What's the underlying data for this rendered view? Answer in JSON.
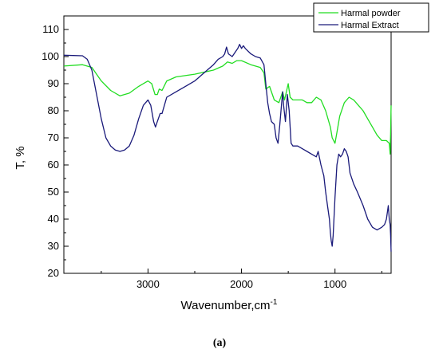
{
  "chart_data": {
    "type": "line",
    "xlabel": "Wavenumber,cm",
    "xlabel_superscript": "-1",
    "ylabel": "T, %",
    "caption": "(a)",
    "xlim": [
      3900,
      400
    ],
    "ylim": [
      20,
      115
    ],
    "x_ticks": [
      3000,
      2000,
      1000
    ],
    "y_ticks": [
      20,
      30,
      40,
      50,
      60,
      70,
      80,
      90,
      100,
      110
    ],
    "x_tick_labels": [
      "3000",
      "2000",
      "1000"
    ],
    "y_tick_labels": [
      "20",
      "30",
      "40",
      "50",
      "60",
      "70",
      "80",
      "90",
      "100",
      "110"
    ],
    "legend_position": "top-right",
    "series": [
      {
        "name": "Harmal powder",
        "color": "#22dd22",
        "points": [
          [
            3900,
            96.5
          ],
          [
            3700,
            97
          ],
          [
            3600,
            96
          ],
          [
            3500,
            91
          ],
          [
            3400,
            87.5
          ],
          [
            3300,
            85.5
          ],
          [
            3200,
            86.5
          ],
          [
            3100,
            89
          ],
          [
            3000,
            91
          ],
          [
            2960,
            90
          ],
          [
            2925,
            86
          ],
          [
            2900,
            86
          ],
          [
            2880,
            88
          ],
          [
            2850,
            87.5
          ],
          [
            2800,
            91
          ],
          [
            2700,
            92.5
          ],
          [
            2500,
            93.5
          ],
          [
            2300,
            95
          ],
          [
            2200,
            96.5
          ],
          [
            2150,
            98
          ],
          [
            2100,
            97.5
          ],
          [
            2050,
            98.5
          ],
          [
            2000,
            98.5
          ],
          [
            1900,
            97
          ],
          [
            1800,
            96
          ],
          [
            1760,
            94
          ],
          [
            1740,
            88
          ],
          [
            1700,
            89
          ],
          [
            1650,
            84
          ],
          [
            1600,
            83
          ],
          [
            1560,
            87
          ],
          [
            1540,
            84
          ],
          [
            1500,
            90
          ],
          [
            1480,
            85
          ],
          [
            1450,
            84
          ],
          [
            1400,
            84
          ],
          [
            1350,
            84
          ],
          [
            1300,
            83
          ],
          [
            1250,
            83
          ],
          [
            1200,
            85
          ],
          [
            1150,
            84
          ],
          [
            1100,
            80
          ],
          [
            1050,
            74
          ],
          [
            1030,
            70
          ],
          [
            1000,
            68
          ],
          [
            980,
            72
          ],
          [
            950,
            78
          ],
          [
            900,
            83
          ],
          [
            850,
            85
          ],
          [
            800,
            84
          ],
          [
            750,
            82
          ],
          [
            700,
            80
          ],
          [
            650,
            77
          ],
          [
            600,
            74
          ],
          [
            550,
            71
          ],
          [
            500,
            69
          ],
          [
            450,
            69
          ],
          [
            420,
            68
          ],
          [
            410,
            64
          ],
          [
            405,
            72
          ],
          [
            400,
            82
          ]
        ]
      },
      {
        "name": "Harmal Extract",
        "color": "#1a1a7a",
        "points": [
          [
            3900,
            100.5
          ],
          [
            3700,
            100.3
          ],
          [
            3650,
            99
          ],
          [
            3600,
            95
          ],
          [
            3550,
            86
          ],
          [
            3500,
            77
          ],
          [
            3450,
            70
          ],
          [
            3400,
            67
          ],
          [
            3350,
            65.5
          ],
          [
            3300,
            65
          ],
          [
            3250,
            65.5
          ],
          [
            3200,
            67
          ],
          [
            3150,
            71
          ],
          [
            3100,
            77
          ],
          [
            3050,
            82
          ],
          [
            3000,
            84
          ],
          [
            2970,
            82
          ],
          [
            2940,
            76
          ],
          [
            2920,
            74
          ],
          [
            2900,
            76
          ],
          [
            2870,
            79
          ],
          [
            2850,
            79
          ],
          [
            2800,
            85
          ],
          [
            2700,
            87
          ],
          [
            2600,
            89
          ],
          [
            2500,
            91
          ],
          [
            2400,
            94
          ],
          [
            2300,
            97
          ],
          [
            2250,
            99
          ],
          [
            2200,
            100
          ],
          [
            2180,
            101
          ],
          [
            2160,
            103.5
          ],
          [
            2140,
            101
          ],
          [
            2100,
            100
          ],
          [
            2060,
            102
          ],
          [
            2040,
            103
          ],
          [
            2020,
            104.5
          ],
          [
            2000,
            103
          ],
          [
            1980,
            104
          ],
          [
            1960,
            103
          ],
          [
            1900,
            101
          ],
          [
            1850,
            100
          ],
          [
            1800,
            99.5
          ],
          [
            1760,
            97
          ],
          [
            1740,
            90
          ],
          [
            1720,
            83
          ],
          [
            1700,
            79
          ],
          [
            1680,
            76
          ],
          [
            1650,
            75
          ],
          [
            1630,
            70
          ],
          [
            1610,
            68
          ],
          [
            1590,
            75
          ],
          [
            1570,
            83
          ],
          [
            1560,
            87
          ],
          [
            1550,
            82
          ],
          [
            1530,
            76
          ],
          [
            1510,
            86
          ],
          [
            1490,
            80
          ],
          [
            1470,
            68
          ],
          [
            1450,
            67
          ],
          [
            1400,
            67
          ],
          [
            1350,
            66
          ],
          [
            1300,
            65
          ],
          [
            1250,
            64
          ],
          [
            1200,
            63
          ],
          [
            1180,
            65
          ],
          [
            1150,
            60
          ],
          [
            1120,
            56
          ],
          [
            1100,
            50
          ],
          [
            1080,
            45
          ],
          [
            1060,
            40
          ],
          [
            1050,
            35
          ],
          [
            1040,
            32
          ],
          [
            1030,
            30
          ],
          [
            1020,
            34
          ],
          [
            1000,
            48
          ],
          [
            980,
            60
          ],
          [
            960,
            64
          ],
          [
            940,
            63
          ],
          [
            920,
            64
          ],
          [
            900,
            66
          ],
          [
            880,
            65
          ],
          [
            860,
            63
          ],
          [
            840,
            57
          ],
          [
            800,
            53
          ],
          [
            760,
            50
          ],
          [
            700,
            45
          ],
          [
            650,
            40
          ],
          [
            600,
            37
          ],
          [
            550,
            36
          ],
          [
            500,
            37
          ],
          [
            470,
            38
          ],
          [
            450,
            40
          ],
          [
            430,
            45
          ],
          [
            420,
            40
          ],
          [
            410,
            38
          ],
          [
            405,
            34
          ],
          [
            400,
            28
          ]
        ]
      }
    ]
  }
}
